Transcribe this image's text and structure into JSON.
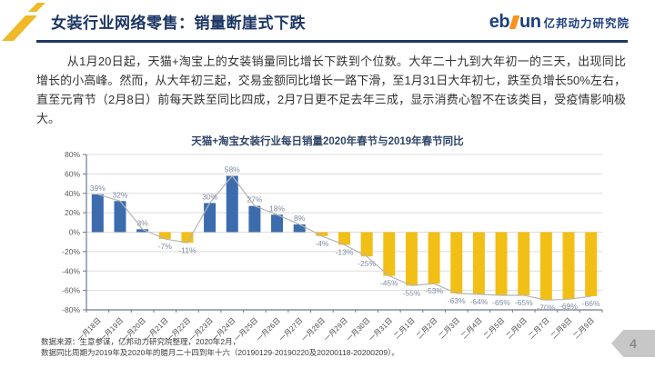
{
  "header": {
    "title": "女装行业网络零售：销量断崖式下跌",
    "brand": {
      "latin_left": "eb",
      "latin_right": "un",
      "cn": "亿邦动力研究院"
    }
  },
  "body": {
    "paragraph": "从1月20日起，天猫+淘宝上的女装销量同比增长下跌到个位数。大年二十九到大年初一的三天，出现同比增长的小高峰。然而，从大年初三起，交易金额同比增长一路下滑，至1月31日大年初七，跌至负增长50%左右，直至元宵节（2月8日）前每天跌至同比四成，2月7日更不足去年三成，显示消费心智不在该类目，受疫情影响极大。"
  },
  "chart_data": {
    "type": "bar",
    "title": "天猫+淘宝女装行业每日销量2020年春节与2019年春节同比",
    "categories": [
      "一月18日",
      "一月19日",
      "一月20日",
      "一月21日",
      "一月22日",
      "一月23日",
      "一月24日",
      "一月25日",
      "一月26日",
      "一月27日",
      "一月28日",
      "一月29日",
      "一月30日",
      "一月31日",
      "二月1日",
      "二月2日",
      "二月3日",
      "二月4日",
      "二月5日",
      "二月6日",
      "二月7日",
      "二月8日",
      "二月9日"
    ],
    "values": [
      39,
      32,
      3,
      -7,
      -11,
      30,
      58,
      27,
      18,
      8,
      -4,
      -13,
      -25,
      -45,
      -55,
      -53,
      -63,
      -64,
      -65,
      -65,
      -70,
      -69,
      -66
    ],
    "unit": "%",
    "y_ticks": [
      "80%",
      "60%",
      "40%",
      "20%",
      "0%",
      "-20%",
      "-40%",
      "-60%",
      "-80%"
    ],
    "ylim": [
      -80,
      80
    ],
    "grid": true,
    "legend": "none",
    "overlay_line": true,
    "xlabel": "",
    "ylabel": "",
    "colors": {
      "positive_bar": "#3c6cae",
      "negative_bar": "#f2bf17",
      "line": "#b5b5b5",
      "data_label": "#7d8ca3",
      "grid": "#dcdcdc",
      "axis": "#6b7a90",
      "tick_label": "#595959"
    }
  },
  "footnote": {
    "line1": "数据来源：生意参谋，亿邦动力研究院整理，2020年2月，",
    "line2": "数据同比周期为2019年及2020年的腊月二十四到年十六（20190129-20190220及20200118-20200209）。"
  },
  "page": {
    "number": "4"
  },
  "decor": {
    "slash_color": "#f0b929"
  }
}
